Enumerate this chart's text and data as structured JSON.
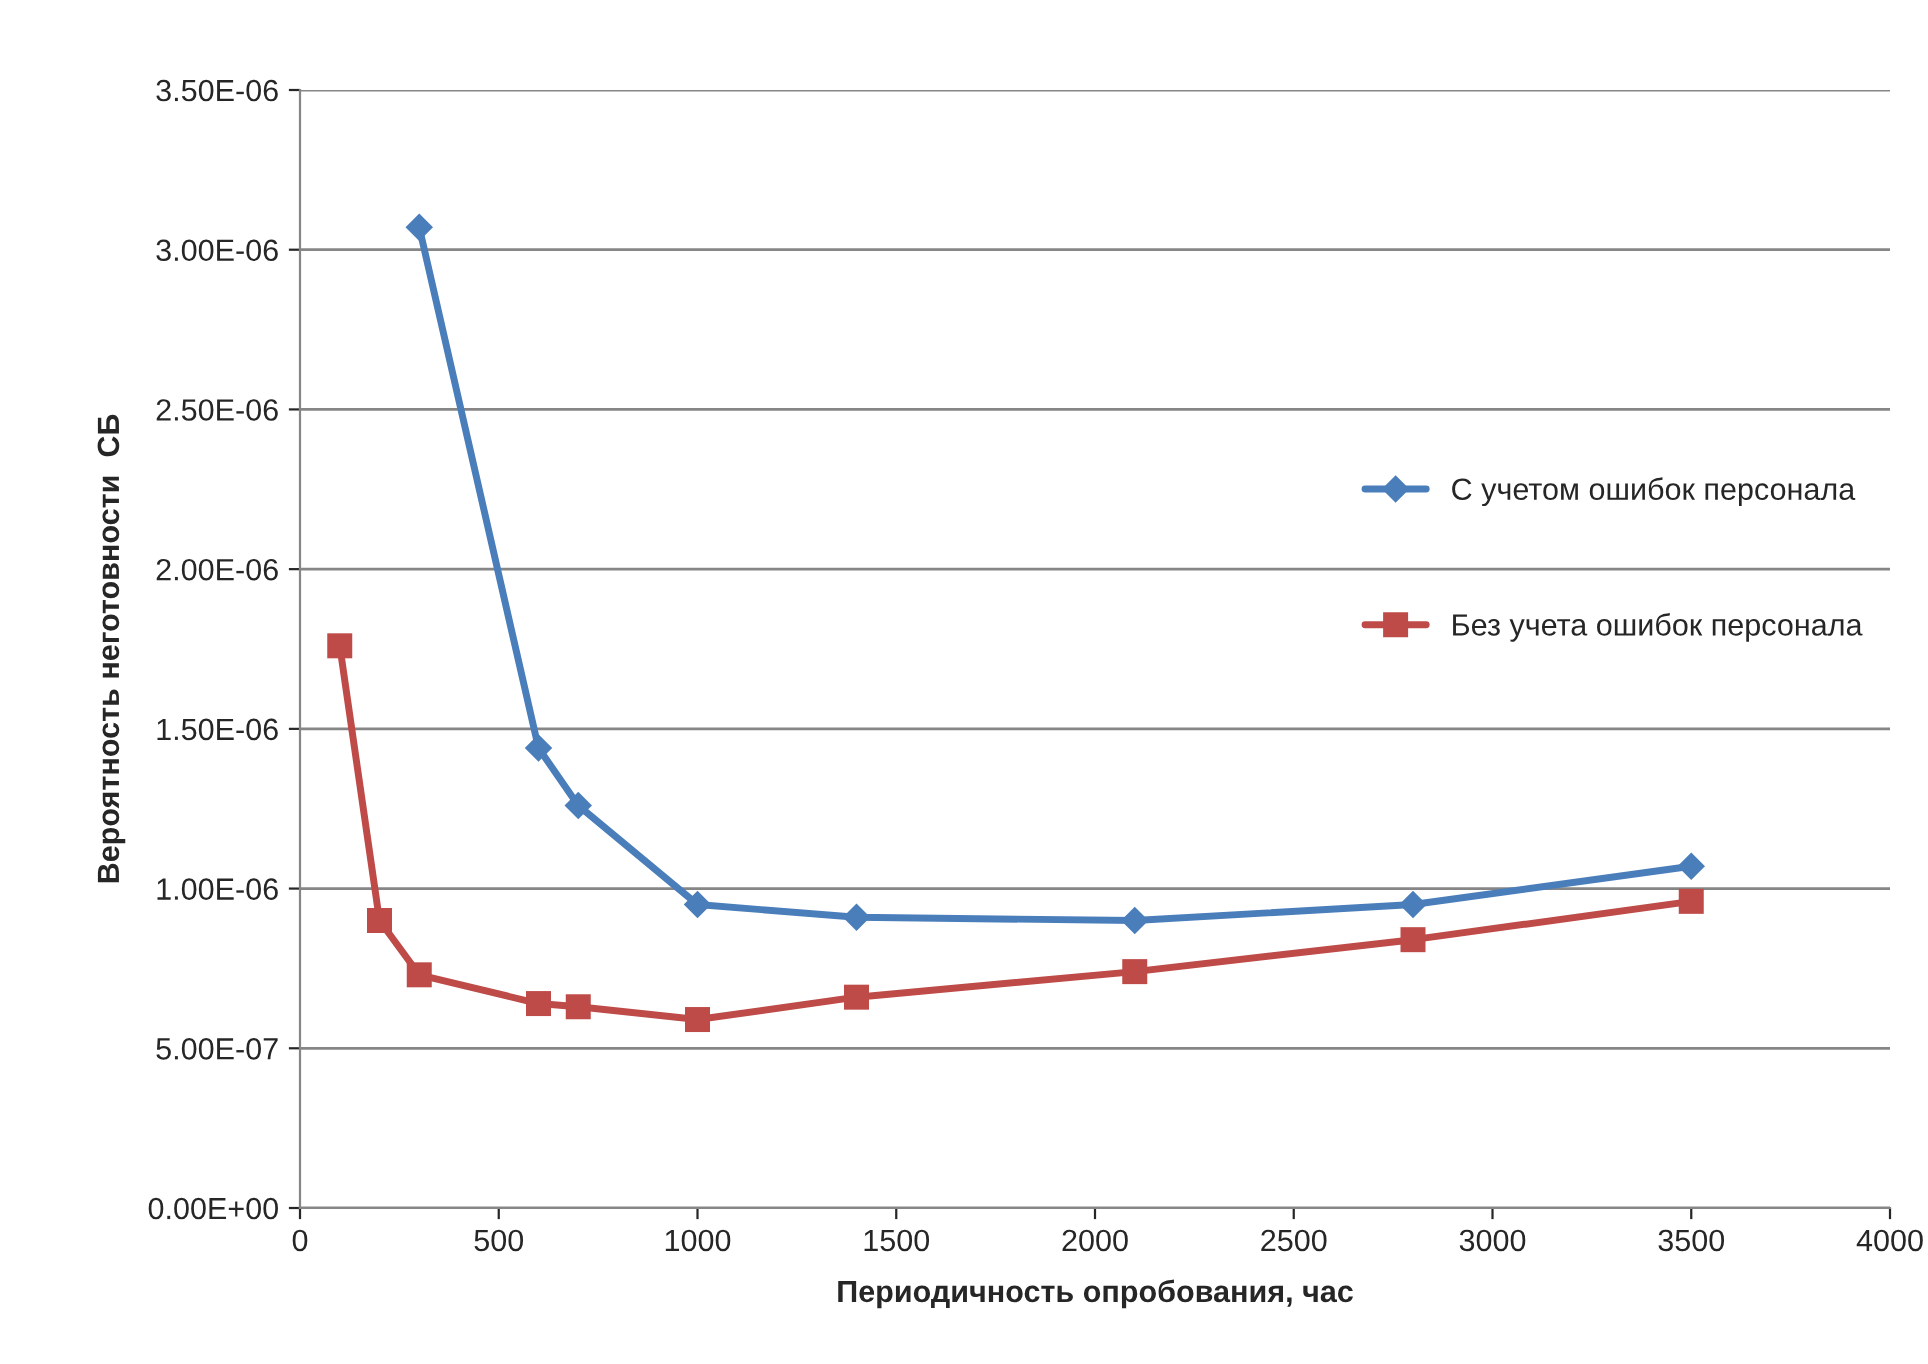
{
  "chart_data": {
    "type": "line",
    "xlabel": "Периодичность опробования, час",
    "ylabel": "Вероятность неготовности  СБ",
    "xlim": [
      0,
      4000
    ],
    "xticks": [
      0,
      500,
      1000,
      1500,
      2000,
      2500,
      3000,
      3500,
      4000
    ],
    "ylim": [
      0,
      3.5e-06
    ],
    "yticks": [
      {
        "value": 0,
        "label": "0.00E+00"
      },
      {
        "value": 5e-07,
        "label": "5.00E-07"
      },
      {
        "value": 1e-06,
        "label": "1.00E-06"
      },
      {
        "value": 1.5e-06,
        "label": "1.50E-06"
      },
      {
        "value": 2e-06,
        "label": "2.00E-06"
      },
      {
        "value": 2.5e-06,
        "label": "2.50E-06"
      },
      {
        "value": 3e-06,
        "label": "3.00E-06"
      },
      {
        "value": 3.5e-06,
        "label": "3.50E-06"
      }
    ],
    "grid": "y",
    "legend": "right",
    "line_style": "solid",
    "series": [
      {
        "name": "С учетом ошибок персонала",
        "color": "#4a7ebb",
        "marker": "diamond",
        "x": [
          300,
          600,
          700,
          1000,
          1400,
          2100,
          2800,
          3500
        ],
        "values": [
          3.07e-06,
          1.44e-06,
          1.26e-06,
          9.5e-07,
          9.1e-07,
          9e-07,
          9.5e-07,
          1.07e-06
        ]
      },
      {
        "name": "Без учета ошибок персонала",
        "color": "#be4b48",
        "marker": "square",
        "x": [
          100,
          200,
          300,
          600,
          700,
          1000,
          1400,
          2100,
          2800,
          3500
        ],
        "values": [
          1.76e-06,
          9e-07,
          7.3e-07,
          6.4e-07,
          6.3e-07,
          5.9e-07,
          6.6e-07,
          7.4e-07,
          8.4e-07,
          9.6e-07
        ]
      }
    ]
  }
}
